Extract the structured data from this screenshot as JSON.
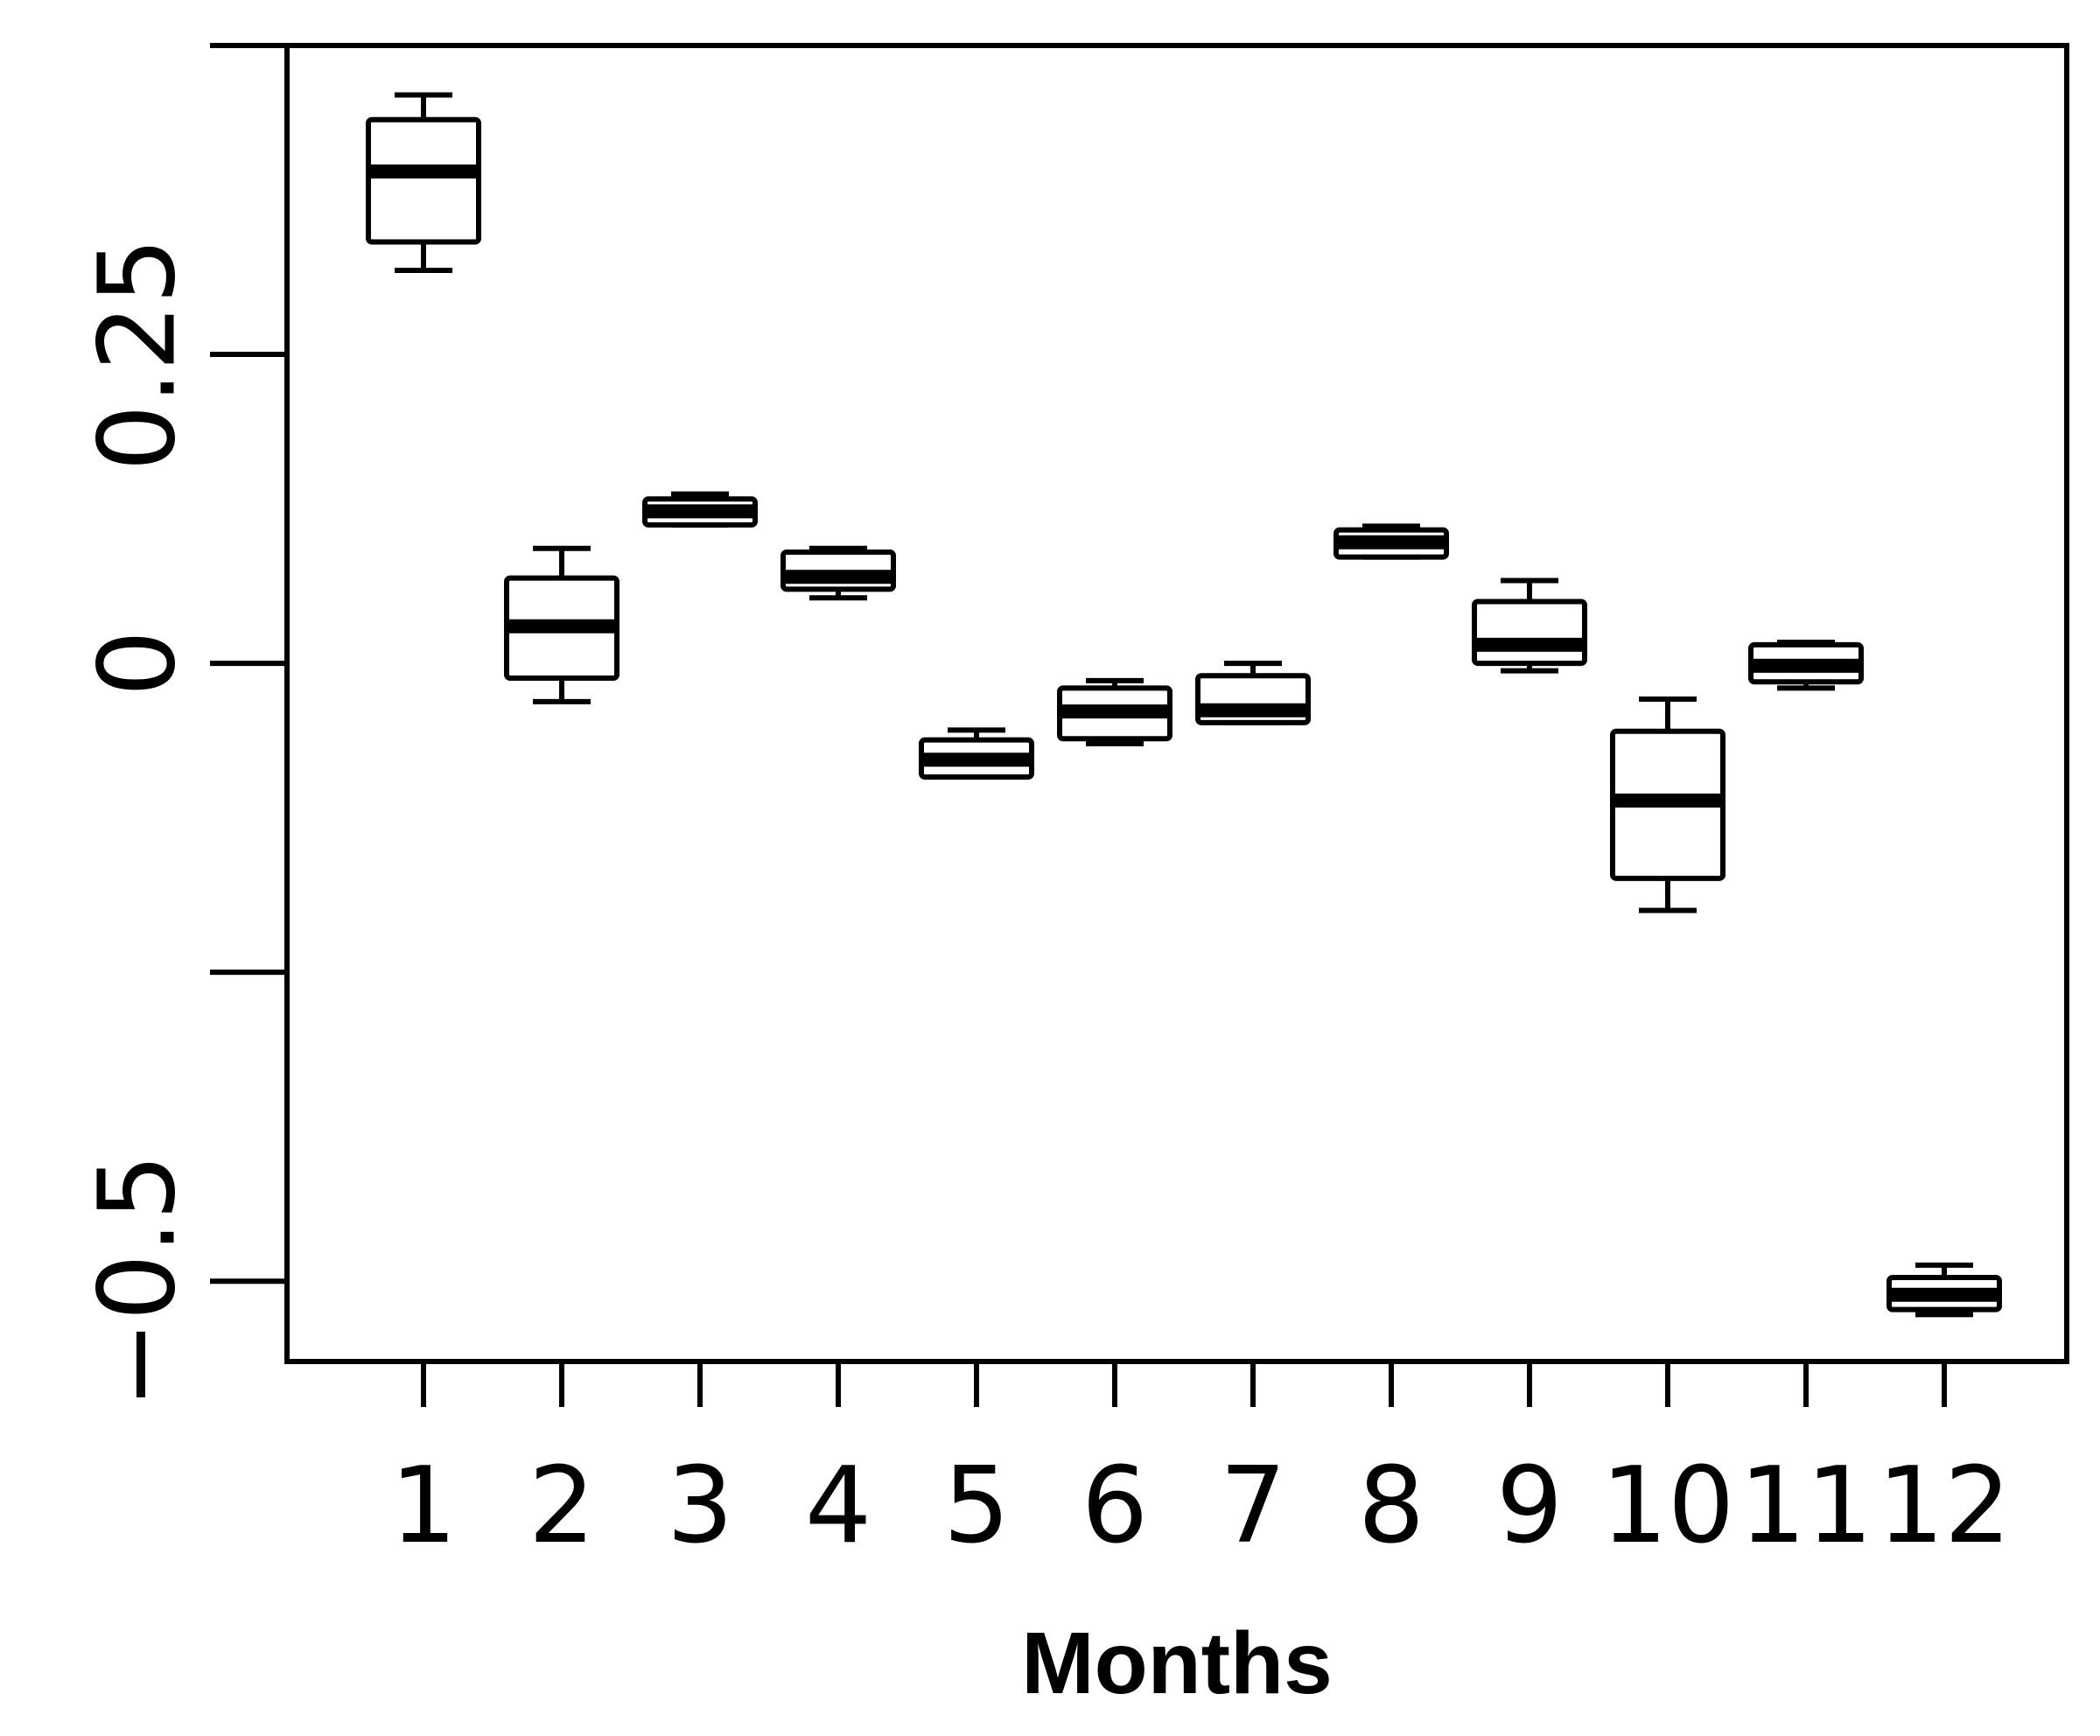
{
  "chart_data": {
    "type": "box",
    "title": "",
    "xlabel": "Months",
    "ylabel": "",
    "categories": [
      "1",
      "2",
      "3",
      "4",
      "5",
      "6",
      "7",
      "8",
      "9",
      "10",
      "11",
      "12"
    ],
    "ylim": [
      -0.565,
      0.5
    ],
    "yticks": [
      0.5,
      0.25,
      0,
      -0.25,
      -0.5
    ],
    "ytick_labels": [
      "",
      "0.25",
      "0",
      "",
      "−0.5"
    ],
    "boxes": [
      {
        "whisker_low": 0.318,
        "q1": 0.341,
        "median": 0.398,
        "q3": 0.44,
        "whisker_high": 0.46
      },
      {
        "whisker_low": -0.031,
        "q1": -0.012,
        "median": 0.03,
        "q3": 0.069,
        "whisker_high": 0.093
      },
      {
        "whisker_low": 0.112,
        "q1": 0.112,
        "median": 0.123,
        "q3": 0.133,
        "whisker_high": 0.137
      },
      {
        "whisker_low": 0.053,
        "q1": 0.06,
        "median": 0.07,
        "q3": 0.09,
        "whisker_high": 0.093
      },
      {
        "whisker_low": -0.092,
        "q1": -0.092,
        "median": -0.078,
        "q3": -0.062,
        "whisker_high": -0.054
      },
      {
        "whisker_low": -0.065,
        "q1": -0.061,
        "median": -0.039,
        "q3": -0.02,
        "whisker_high": -0.014
      },
      {
        "whisker_low": -0.048,
        "q1": -0.048,
        "median": -0.038,
        "q3": -0.01,
        "whisker_high": 0.0
      },
      {
        "whisker_low": 0.086,
        "q1": 0.086,
        "median": 0.098,
        "q3": 0.108,
        "whisker_high": 0.111
      },
      {
        "whisker_low": -0.006,
        "q1": 0.0,
        "median": 0.015,
        "q3": 0.05,
        "whisker_high": 0.067
      },
      {
        "whisker_low": -0.2,
        "q1": -0.174,
        "median": -0.111,
        "q3": -0.055,
        "whisker_high": -0.029
      },
      {
        "whisker_low": -0.02,
        "q1": -0.015,
        "median": -0.002,
        "q3": 0.015,
        "whisker_high": 0.017
      },
      {
        "whisker_low": -0.527,
        "q1": -0.523,
        "median": -0.511,
        "q3": -0.497,
        "whisker_high": -0.487
      }
    ]
  }
}
